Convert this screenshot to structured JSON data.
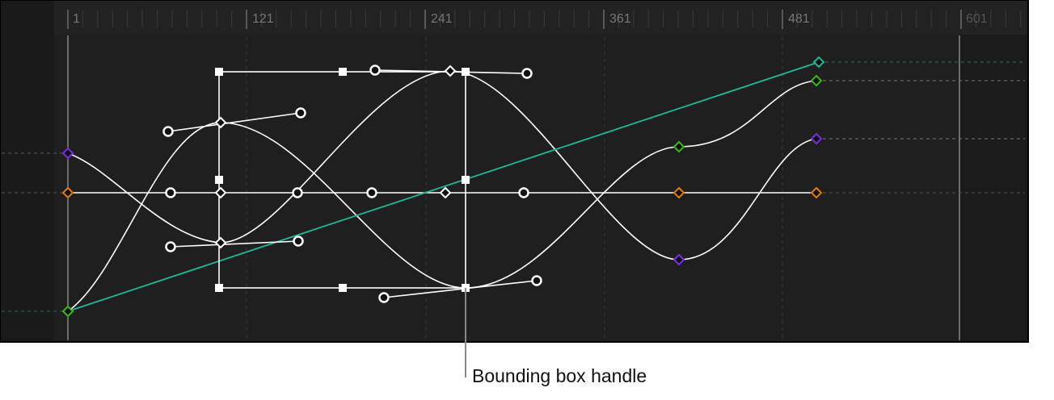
{
  "ruler": {
    "labels": [
      "1",
      "121",
      "241",
      "361",
      "481",
      "601"
    ]
  },
  "callout": {
    "label": "Bounding box handle"
  },
  "colors": {
    "teal": "#1fb89a",
    "green": "#3cb81a",
    "purple": "#7a2ee0",
    "orange": "#e07a12",
    "curve": "#ffffff"
  }
}
